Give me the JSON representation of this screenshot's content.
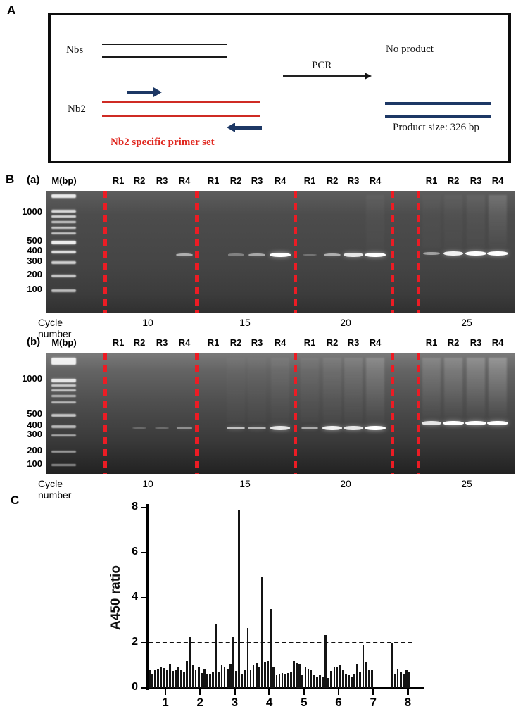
{
  "panel_a": {
    "letter": "A",
    "nbs": "Nbs",
    "nb2": "Nb2",
    "primer_caption": "Nb2 specific primer set",
    "pcr": "PCR",
    "no_product": "No product",
    "product_size": "Product size: 326 bp",
    "colors": {
      "line_black": "#1a1a1a",
      "line_red": "#cf2b24",
      "arrow_navy": "#1d3865",
      "caption_red": "#e02820"
    }
  },
  "panel_b": {
    "letter": "B",
    "marker_label": "M(bp)",
    "lane_labels": [
      "R1",
      "R2",
      "R3",
      "R4"
    ],
    "bp_labels": [
      "1000",
      "500",
      "400",
      "300",
      "200",
      "100"
    ],
    "cycle_caption": "Cycle number",
    "cycle_values": [
      "10",
      "15",
      "20",
      "25"
    ],
    "dash_color": "#ec1c24",
    "gels": [
      {
        "name": "(a)",
        "groups": [
          {
            "cycle": "10",
            "bands": [
              0,
              0,
              0,
              0.5
            ],
            "glow": [
              0,
              0,
              0,
              0
            ]
          },
          {
            "cycle": "15",
            "bands": [
              0,
              0.2,
              0.45,
              1
            ],
            "glow": [
              0,
              0,
              0,
              0
            ]
          },
          {
            "cycle": "20",
            "bands": [
              0.12,
              0.5,
              0.85,
              1
            ],
            "glow": [
              0,
              0,
              0,
              0.08
            ]
          },
          {
            "cycle": "25",
            "bands": [
              0.4,
              0.9,
              1,
              1
            ],
            "glow": [
              0.05,
              0.08,
              0.12,
              0.3
            ]
          }
        ]
      },
      {
        "name": "(b)",
        "groups": [
          {
            "cycle": "10",
            "bands": [
              0,
              0.08,
              0.1,
              0.3
            ],
            "glow": [
              0,
              0,
              0,
              0
            ]
          },
          {
            "cycle": "15",
            "bands": [
              0,
              0.62,
              0.55,
              0.85
            ],
            "glow": [
              0,
              0.05,
              0.05,
              0.12
            ]
          },
          {
            "cycle": "20",
            "bands": [
              0.5,
              0.9,
              0.85,
              1
            ],
            "glow": [
              0.1,
              0.16,
              0.22,
              0.35
            ]
          },
          {
            "cycle": "25",
            "bands": [
              0.85,
              1,
              1,
              1
            ],
            "glow": [
              0.3,
              0.35,
              0.42,
              0.5
            ]
          }
        ]
      }
    ]
  },
  "panel_c": {
    "letter": "C",
    "ylabel": "A450 ratio"
  },
  "chart_data": {
    "type": "bar",
    "title": "",
    "xlabel": "",
    "ylabel": "A450 ratio",
    "ylim": [
      0,
      8
    ],
    "xlim": [
      0.5,
      8.5
    ],
    "yticks": [
      0,
      2,
      4,
      6,
      8
    ],
    "xticks": [
      1,
      2,
      3,
      4,
      5,
      6,
      7,
      8
    ],
    "threshold": 2,
    "threshold_style": "dashed",
    "bars_per_unit": 12,
    "x_start": 0.5,
    "bar_color": "#141414",
    "values": [
      0.78,
      0.6,
      0.8,
      0.85,
      0.95,
      0.88,
      0.78,
      1.05,
      0.75,
      0.8,
      0.95,
      0.78,
      0.72,
      1.2,
      2.25,
      1.02,
      0.8,
      0.95,
      0.65,
      0.85,
      0.6,
      0.63,
      0.7,
      2.8,
      0.68,
      1.0,
      0.95,
      0.85,
      1.05,
      2.25,
      0.75,
      7.9,
      0.6,
      0.8,
      2.65,
      0.78,
      1.0,
      1.1,
      0.95,
      4.9,
      1.15,
      1.18,
      3.5,
      0.95,
      0.55,
      0.6,
      0.65,
      0.62,
      0.65,
      0.68,
      1.2,
      1.1,
      1.05,
      0.55,
      0.9,
      0.85,
      0.78,
      0.55,
      0.5,
      0.55,
      0.5,
      2.35,
      0.45,
      0.75,
      0.9,
      0.95,
      1.0,
      0.8,
      0.6,
      0.55,
      0.5,
      0.6,
      1.05,
      0.7,
      1.9,
      1.15,
      0.78,
      0.8,
      0,
      0,
      0,
      0,
      0,
      0,
      1.98,
      0.62,
      0.85,
      0.68,
      0.58,
      0.78,
      0.72,
      0,
      0,
      0,
      0,
      0
    ]
  }
}
